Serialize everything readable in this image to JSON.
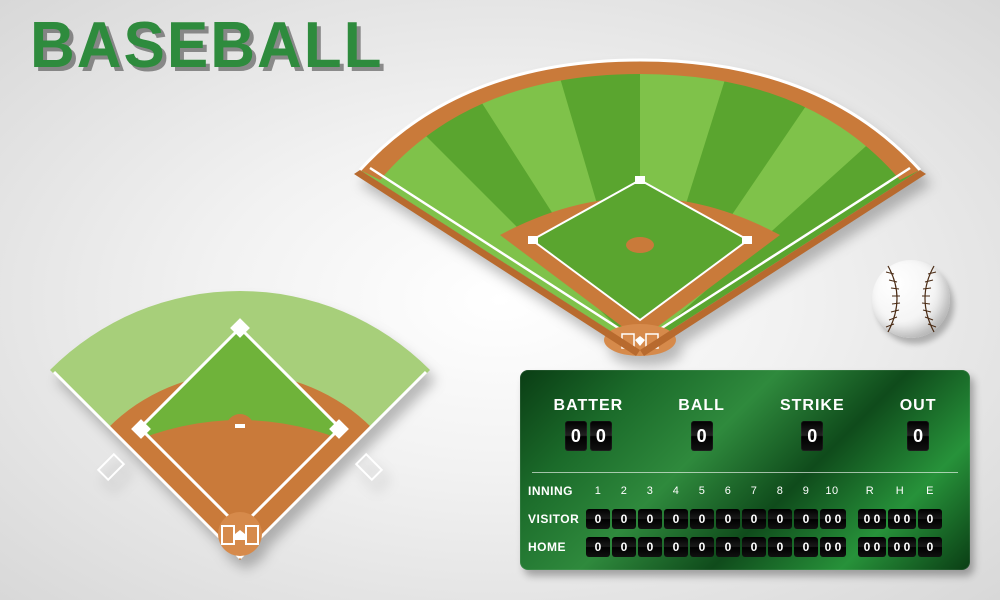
{
  "title": "BASEBALL",
  "colors": {
    "title": "#2e8b3d",
    "grass_light": "#a7cf7a",
    "grass_mid": "#6fb33a",
    "grass_dark": "#4e9a2f",
    "infield_dirt": "#c97a3a",
    "infield_dirt_dark": "#b86a2e",
    "chalk": "#ffffff",
    "board_bg1": "#0a3d14",
    "board_bg2": "#2f8a3d",
    "digit_bg": "#000000",
    "ball_hi": "#ffffff",
    "ball_lo": "#bcbcbc",
    "stitch": "#4a2b14"
  },
  "scoreboard": {
    "top": [
      {
        "label": "BATTER",
        "digits": [
          "0",
          "0"
        ]
      },
      {
        "label": "BALL",
        "digits": [
          "0"
        ]
      },
      {
        "label": "STRIKE",
        "digits": [
          "0"
        ]
      },
      {
        "label": "OUT",
        "digits": [
          "0"
        ]
      }
    ],
    "inning_label": "INNING",
    "innings": [
      "1",
      "2",
      "3",
      "4",
      "5",
      "6",
      "7",
      "8",
      "9",
      "10"
    ],
    "extra_cols": [
      "R",
      "H",
      "E"
    ],
    "rows": [
      {
        "label": "VISITOR",
        "innings": [
          "0",
          "0",
          "0",
          "0",
          "0",
          "0",
          "0",
          "0",
          "0",
          "0 0"
        ],
        "rhe": [
          "0 0",
          "0 0",
          "0"
        ]
      },
      {
        "label": "HOME",
        "innings": [
          "0",
          "0",
          "0",
          "0",
          "0",
          "0",
          "0",
          "0",
          "0",
          "0 0"
        ],
        "rhe": [
          "0 0",
          "0 0",
          "0"
        ]
      }
    ]
  },
  "field_topdown": {
    "type": "diagram",
    "outfield_color": "#a7cf7a",
    "infield_grass": "#6fb33a",
    "dirt": "#c97a3a",
    "line": "#ffffff"
  },
  "field_perspective": {
    "type": "diagram",
    "outfield_light": "#7fc24a",
    "outfield_dark": "#5aa52f",
    "dirt": "#c97a3a",
    "line": "#ffffff"
  }
}
